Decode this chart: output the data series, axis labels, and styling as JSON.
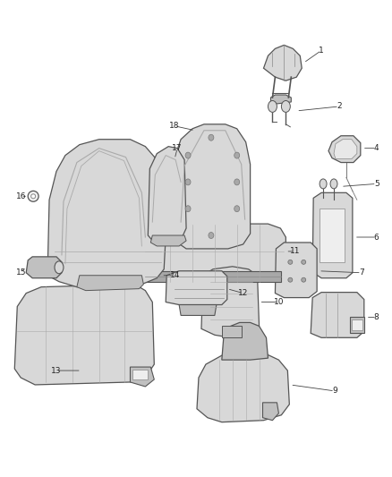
{
  "bg_color": "#ffffff",
  "ec": "#555555",
  "fc_light": "#d8d8d8",
  "fc_mid": "#c0c0c0",
  "fc_dark": "#a8a8a8",
  "lw_part": 0.8,
  "figsize": [
    4.38,
    5.33
  ],
  "dpi": 100
}
